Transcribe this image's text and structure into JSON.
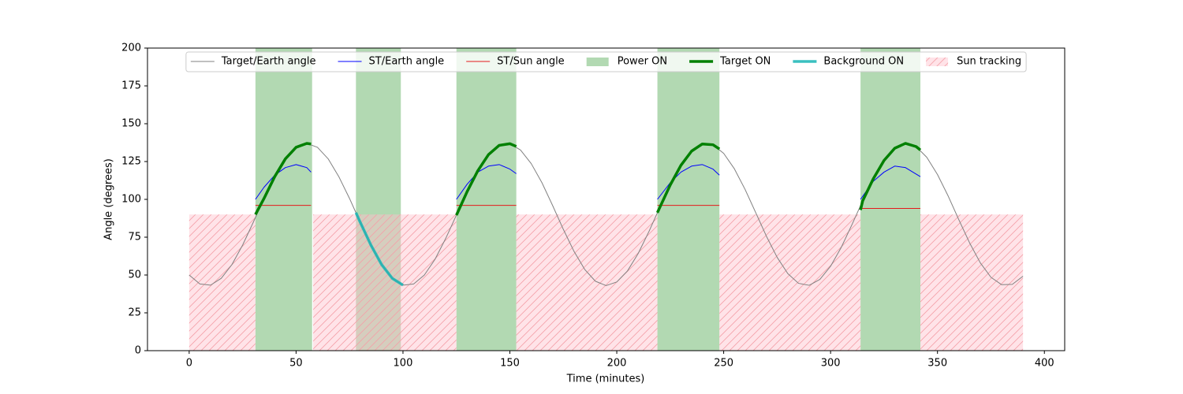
{
  "chart_data": {
    "type": "line",
    "xlabel": "Time (minutes)",
    "ylabel": "Angle (degrees)",
    "xlim": [
      -19.5,
      409.5
    ],
    "ylim": [
      0,
      200
    ],
    "xticks": [
      0,
      50,
      100,
      150,
      200,
      250,
      300,
      350,
      400
    ],
    "yticks": [
      0,
      25,
      50,
      75,
      100,
      125,
      150,
      175,
      200
    ],
    "legend": "upper center",
    "series": [
      {
        "name": "Target/Earth angle",
        "kind": "line",
        "color": "#808080",
        "width": 1,
        "x": [
          0,
          5,
          10,
          15,
          20,
          25,
          30,
          35,
          40,
          45,
          50,
          55,
          60,
          65,
          70,
          75,
          80,
          85,
          90,
          95,
          100,
          105,
          110,
          115,
          120,
          125,
          130,
          135,
          140,
          145,
          150,
          155,
          160,
          165,
          170,
          175,
          180,
          185,
          190,
          195,
          200,
          205,
          210,
          215,
          220,
          225,
          230,
          235,
          240,
          245,
          250,
          255,
          260,
          265,
          270,
          275,
          280,
          285,
          290,
          295,
          300,
          305,
          310,
          315,
          320,
          325,
          330,
          335,
          340,
          345,
          350,
          355,
          360,
          365,
          370,
          375,
          380,
          385,
          390
        ],
        "values": [
          50.0,
          44.1,
          43.3,
          47.8,
          56.9,
          69.8,
          84.9,
          100.6,
          115.0,
          126.8,
          134.4,
          137.0,
          134.4,
          126.8,
          115.0,
          100.6,
          84.9,
          69.8,
          56.9,
          47.8,
          43.3,
          44.1,
          50.0,
          60.4,
          74.2,
          89.6,
          105.1,
          118.9,
          129.6,
          135.7,
          136.8,
          132.6,
          123.6,
          111.0,
          95.9,
          80.2,
          65.6,
          53.7,
          45.9,
          43.0,
          45.4,
          52.7,
          64.2,
          78.6,
          94.3,
          109.5,
          122.5,
          131.9,
          136.6,
          136.1,
          130.4,
          120.2,
          106.6,
          91.2,
          75.6,
          61.7,
          50.9,
          44.5,
          43.2,
          47.1,
          55.8,
          68.3,
          83.3,
          99.0,
          113.7,
          125.7,
          133.8,
          137.0,
          134.9,
          127.8,
          116.4,
          102.2,
          86.5,
          71.3,
          58.1,
          48.5,
          43.6,
          43.8,
          49.2
        ]
      },
      {
        "name": "ST/Earth angle",
        "kind": "line",
        "color": "#0000ff",
        "width": 1,
        "x": [
          31,
          35,
          40,
          45,
          50,
          55,
          57,
          null,
          125,
          130,
          135,
          140,
          145,
          150,
          153,
          null,
          219,
          225,
          230,
          235,
          240,
          245,
          248,
          null,
          314,
          320,
          325,
          330,
          335,
          342
        ],
        "values": [
          100,
          108,
          116,
          121,
          123,
          121,
          118,
          null,
          100,
          110,
          118,
          122,
          123,
          120,
          117,
          null,
          100,
          111,
          118,
          122,
          123,
          120,
          116,
          null,
          100,
          112,
          118,
          122,
          121,
          115
        ]
      },
      {
        "name": "ST/Sun angle",
        "kind": "line",
        "color": "#e41a1c",
        "width": 1,
        "x": [
          31,
          57,
          null,
          125,
          153,
          null,
          219,
          248,
          null,
          314,
          342
        ],
        "values": [
          96,
          96,
          null,
          96,
          96,
          null,
          96,
          96,
          null,
          94,
          94
        ]
      },
      {
        "name": "Power ON",
        "kind": "span",
        "color": "#008000",
        "alpha": 0.3,
        "ranges": [
          [
            31,
            57.5
          ],
          [
            78,
            99
          ],
          [
            125,
            153
          ],
          [
            219,
            248
          ],
          [
            314,
            342
          ]
        ]
      },
      {
        "name": "Target ON",
        "kind": "line",
        "color": "#008000",
        "width": 3.5,
        "x": [
          31,
          35,
          40,
          45,
          50,
          55,
          57,
          null,
          125,
          130,
          135,
          140,
          145,
          150,
          153,
          null,
          219,
          220,
          225,
          230,
          235,
          240,
          245,
          248,
          null,
          314,
          315,
          320,
          325,
          330,
          335,
          340,
          342
        ],
        "values": [
          90,
          100.6,
          115.0,
          126.8,
          134.4,
          137.0,
          136.6,
          null,
          89.6,
          105.1,
          118.9,
          129.6,
          135.7,
          136.8,
          135.0,
          null,
          91.2,
          94.3,
          109.5,
          122.5,
          131.9,
          136.6,
          136.1,
          133.3,
          null,
          93,
          99.0,
          113.7,
          125.7,
          133.8,
          137.0,
          134.9,
          132.6
        ]
      },
      {
        "name": "Background ON",
        "kind": "line",
        "color": "#17b5b5",
        "width": 3.5,
        "alpha": 0.85,
        "x": [
          78,
          80,
          85,
          90,
          95,
          100
        ],
        "values": [
          91.2,
          84.9,
          69.8,
          56.9,
          47.8,
          43.3
        ]
      },
      {
        "name": "Sun tracking",
        "kind": "span",
        "color": "#ffc0cb",
        "alpha": 0.45,
        "hatch": true,
        "top": 90,
        "ranges": [
          [
            0,
            31
          ],
          [
            58,
            125
          ],
          [
            153,
            219
          ],
          [
            248,
            314
          ],
          [
            342,
            390
          ]
        ]
      }
    ]
  }
}
